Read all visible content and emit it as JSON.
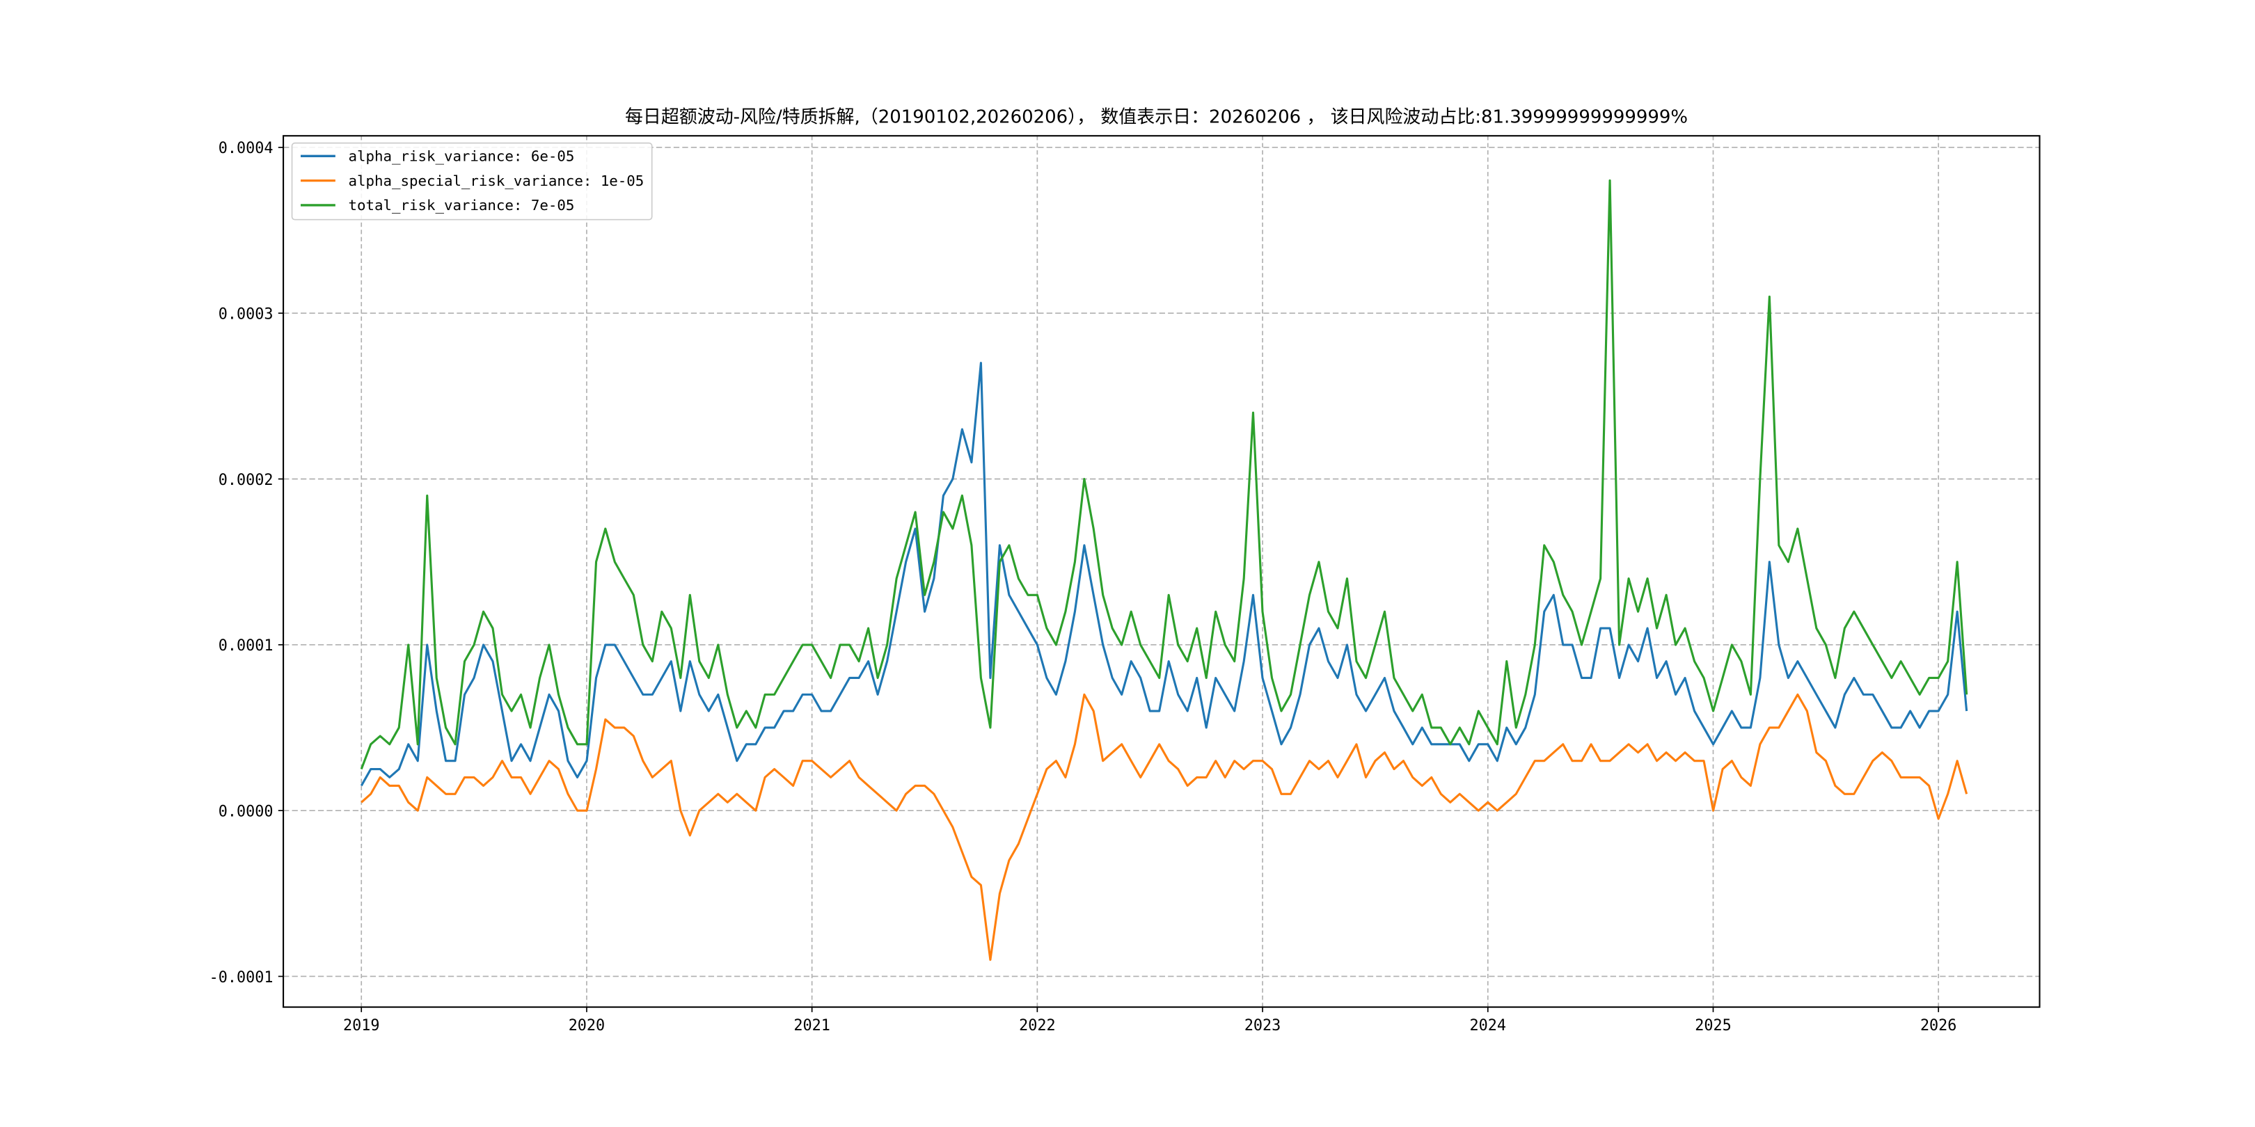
{
  "chart_data": {
    "type": "line",
    "title": "每日超额波动-风险/特质拆解,（20190102,20260206）， 数值表示日：20260206 ， 该日风险波动占比:81.39999999999999%",
    "xlabel": "",
    "ylabel": "",
    "xlim": [
      2018.65,
      2026.45
    ],
    "ylim": [
      -0.000118,
      0.000407
    ],
    "grid": true,
    "legend_position": "top-left",
    "x_start": 2019.0,
    "x_step_years": 0.0416667,
    "value_multiplier": 1e-05,
    "x_ticks": [
      {
        "value": 2019,
        "label": "2019"
      },
      {
        "value": 2020,
        "label": "2020"
      },
      {
        "value": 2021,
        "label": "2021"
      },
      {
        "value": 2022,
        "label": "2022"
      },
      {
        "value": 2023,
        "label": "2023"
      },
      {
        "value": 2024,
        "label": "2024"
      },
      {
        "value": 2025,
        "label": "2025"
      },
      {
        "value": 2026,
        "label": "2026"
      }
    ],
    "y_ticks": [
      {
        "value": -0.0001,
        "label": "-0.0001"
      },
      {
        "value": 0.0,
        "label": "0.0000"
      },
      {
        "value": 0.0001,
        "label": "0.0001"
      },
      {
        "value": 0.0002,
        "label": "0.0002"
      },
      {
        "value": 0.0003,
        "label": "0.0003"
      },
      {
        "value": 0.0004,
        "label": "0.0004"
      }
    ],
    "series": [
      {
        "name": "alpha_risk_variance",
        "legend": "alpha_risk_variance: 6e-05",
        "color": "#1f77b4",
        "values": [
          1.5,
          2.5,
          2.5,
          2,
          2.5,
          4,
          3,
          10,
          6,
          3,
          3,
          7,
          8,
          10,
          9,
          6,
          3,
          4,
          3,
          5,
          7,
          6,
          3,
          2,
          3,
          8,
          10,
          10,
          9,
          8,
          7,
          7,
          8,
          9,
          6,
          9,
          7,
          6,
          7,
          5,
          3,
          4,
          4,
          5,
          5,
          6,
          6,
          7,
          7,
          6,
          6,
          7,
          8,
          8,
          9,
          7,
          9,
          12,
          15,
          17,
          12,
          14,
          19,
          20,
          23,
          21,
          27,
          8,
          16,
          13,
          12,
          11,
          10,
          8,
          7,
          9,
          12,
          16,
          13,
          10,
          8,
          7,
          9,
          8,
          6,
          6,
          9,
          7,
          6,
          8,
          5,
          8,
          7,
          6,
          9,
          13,
          8,
          6,
          4,
          5,
          7,
          10,
          11,
          9,
          8,
          10,
          7,
          6,
          7,
          8,
          6,
          5,
          4,
          5,
          4,
          4,
          4,
          4,
          3,
          4,
          4,
          3,
          5,
          4,
          5,
          7,
          12,
          13,
          10,
          10,
          8,
          8,
          11,
          11,
          8,
          10,
          9,
          11,
          8,
          9,
          7,
          8,
          6,
          5,
          4,
          5,
          6,
          5,
          5,
          8,
          15,
          10,
          8,
          9,
          8,
          7,
          6,
          5,
          7,
          8,
          7,
          7,
          6,
          5,
          5,
          6,
          5,
          6,
          6,
          7,
          12,
          6
        ]
      },
      {
        "name": "alpha_special_risk_variance",
        "legend": "alpha_special_risk_variance: 1e-05",
        "color": "#ff7f0e",
        "values": [
          0.5,
          1,
          2,
          1.5,
          1.5,
          0.5,
          0,
          2,
          1.5,
          1,
          1,
          2,
          2,
          1.5,
          2,
          3,
          2,
          2,
          1,
          2,
          3,
          2.5,
          1,
          0,
          0,
          2.5,
          5.5,
          5,
          5,
          4.5,
          3,
          2,
          2.5,
          3,
          0,
          -1.5,
          0,
          0.5,
          1,
          0.5,
          1,
          0.5,
          0,
          2,
          2.5,
          2,
          1.5,
          3,
          3,
          2.5,
          2,
          2.5,
          3,
          2,
          1.5,
          1,
          0.5,
          0,
          1,
          1.5,
          1.5,
          1,
          0,
          -1,
          -2.5,
          -4,
          -4.5,
          -9,
          -5,
          -3,
          -2,
          -0.5,
          1,
          2.5,
          3,
          2,
          4,
          7,
          6,
          3,
          3.5,
          4,
          3,
          2,
          3,
          4,
          3,
          2.5,
          1.5,
          2,
          2,
          3,
          2,
          3,
          2.5,
          3,
          3,
          2.5,
          1,
          1,
          2,
          3,
          2.5,
          3,
          2,
          3,
          4,
          2,
          3,
          3.5,
          2.5,
          3,
          2,
          1.5,
          2,
          1,
          0.5,
          1,
          0.5,
          0,
          0.5,
          0,
          0.5,
          1,
          2,
          3,
          3,
          3.5,
          4,
          3,
          3,
          4,
          3,
          3,
          3.5,
          4,
          3.5,
          4,
          3,
          3.5,
          3,
          3.5,
          3,
          3,
          0,
          2.5,
          3,
          2,
          1.5,
          4,
          5,
          5,
          6,
          7,
          6,
          3.5,
          3,
          1.5,
          1,
          1,
          2,
          3,
          3.5,
          3,
          2,
          2,
          2,
          1.5,
          -0.5,
          1,
          3,
          1
        ]
      },
      {
        "name": "total_risk_variance",
        "legend": "total_risk_variance: 7e-05",
        "color": "#2ca02c",
        "values": [
          2.5,
          4,
          4.5,
          4,
          5,
          10,
          4,
          19,
          8,
          5,
          4,
          9,
          10,
          12,
          11,
          7,
          6,
          7,
          5,
          8,
          10,
          7,
          5,
          4,
          4,
          15,
          17,
          15,
          14,
          13,
          10,
          9,
          12,
          11,
          8,
          13,
          9,
          8,
          10,
          7,
          5,
          6,
          5,
          7,
          7,
          8,
          9,
          10,
          10,
          9,
          8,
          10,
          10,
          9,
          11,
          8,
          10,
          14,
          16,
          18,
          13,
          15,
          18,
          17,
          19,
          16,
          8,
          5,
          15,
          16,
          14,
          13,
          13,
          11,
          10,
          12,
          15,
          20,
          17,
          13,
          11,
          10,
          12,
          10,
          9,
          8,
          13,
          10,
          9,
          11,
          8,
          12,
          10,
          9,
          14,
          24,
          12,
          8,
          6,
          7,
          10,
          13,
          15,
          12,
          11,
          14,
          9,
          8,
          10,
          12,
          8,
          7,
          6,
          7,
          5,
          5,
          4,
          5,
          4,
          6,
          5,
          4,
          9,
          5,
          7,
          10,
          16,
          15,
          13,
          12,
          10,
          12,
          14,
          38,
          10,
          14,
          12,
          14,
          11,
          13,
          10,
          11,
          9,
          8,
          6,
          8,
          10,
          9,
          7,
          20,
          31,
          16,
          15,
          17,
          14,
          11,
          10,
          8,
          11,
          12,
          11,
          10,
          9,
          8,
          9,
          8,
          7,
          8,
          8,
          9,
          15,
          7
        ]
      }
    ]
  }
}
